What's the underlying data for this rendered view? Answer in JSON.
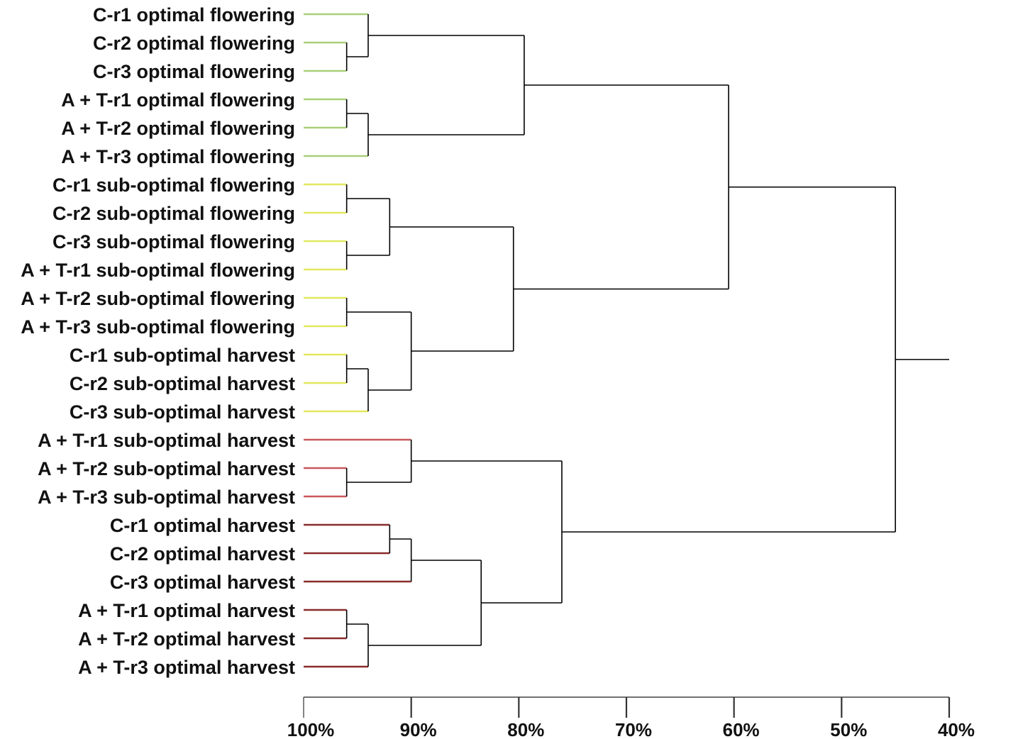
{
  "chart_data": {
    "type": "dendrogram",
    "xlabel": "",
    "ylabel": "",
    "xlim": [
      100,
      40
    ],
    "ticks": [
      {
        "value": 100,
        "label": "100%"
      },
      {
        "value": 90,
        "label": "90%"
      },
      {
        "value": 80,
        "label": "80%"
      },
      {
        "value": 70,
        "label": "70%"
      },
      {
        "value": 60,
        "label": "60%"
      },
      {
        "value": 50,
        "label": "50%"
      },
      {
        "value": 40,
        "label": "40%"
      }
    ],
    "leaves": [
      {
        "label": "C-r1 optimal flowering",
        "group": "optimal-flowering"
      },
      {
        "label": "C-r2 optimal flowering",
        "group": "optimal-flowering"
      },
      {
        "label": "C-r3 optimal flowering",
        "group": "optimal-flowering"
      },
      {
        "label": "A + T-r1 optimal flowering",
        "group": "optimal-flowering"
      },
      {
        "label": "A + T-r2 optimal flowering",
        "group": "optimal-flowering"
      },
      {
        "label": "A + T-r3 optimal flowering",
        "group": "optimal-flowering"
      },
      {
        "label": "C-r1 sub-optimal flowering",
        "group": "sub-optimal-flowering"
      },
      {
        "label": "C-r2 sub-optimal flowering",
        "group": "sub-optimal-flowering"
      },
      {
        "label": "C-r3 sub-optimal flowering",
        "group": "sub-optimal-flowering"
      },
      {
        "label": "A + T-r1 sub-optimal flowering",
        "group": "sub-optimal-flowering"
      },
      {
        "label": "A + T-r2 sub-optimal flowering",
        "group": "sub-optimal-flowering"
      },
      {
        "label": "A + T-r3 sub-optimal flowering",
        "group": "sub-optimal-flowering"
      },
      {
        "label": "C-r1 sub-optimal harvest",
        "group": "sub-optimal-flowering"
      },
      {
        "label": "C-r2 sub-optimal harvest",
        "group": "sub-optimal-flowering"
      },
      {
        "label": "C-r3 sub-optimal harvest",
        "group": "sub-optimal-flowering"
      },
      {
        "label": "A + T-r1 sub-optimal harvest",
        "group": "sub-optimal-harvest"
      },
      {
        "label": "A + T-r2 sub-optimal harvest",
        "group": "sub-optimal-harvest"
      },
      {
        "label": "A + T-r3 sub-optimal harvest",
        "group": "sub-optimal-harvest"
      },
      {
        "label": "C-r1 optimal harvest",
        "group": "optimal-harvest"
      },
      {
        "label": "C-r2 optimal harvest",
        "group": "optimal-harvest"
      },
      {
        "label": "C-r3 optimal harvest",
        "group": "optimal-harvest"
      },
      {
        "label": "A + T-r1 optimal harvest",
        "group": "optimal-harvest"
      },
      {
        "label": "A + T-r2 optimal harvest",
        "group": "optimal-harvest"
      },
      {
        "label": "A + T-r3 optimal harvest",
        "group": "optimal-harvest"
      }
    ],
    "group_colors": {
      "optimal-flowering": "#a9cf7a",
      "sub-optimal-flowering": "#e2e85f",
      "sub-optimal-harvest": "#c9585c",
      "optimal-harvest": "#8a2b2b"
    },
    "merges": [
      {
        "id": "m1",
        "children": [
          "L1",
          "L2"
        ],
        "height": 96
      },
      {
        "id": "m2",
        "children": [
          "m1",
          "L0"
        ],
        "height": 94
      },
      {
        "id": "m3",
        "children": [
          "L3",
          "L4"
        ],
        "height": 96
      },
      {
        "id": "m4",
        "children": [
          "m3",
          "L5"
        ],
        "height": 94
      },
      {
        "id": "m5",
        "children": [
          "m2",
          "m4"
        ],
        "height": 79.5
      },
      {
        "id": "m6",
        "children": [
          "L6",
          "L7"
        ],
        "height": 96
      },
      {
        "id": "m7",
        "children": [
          "L8",
          "L9"
        ],
        "height": 96
      },
      {
        "id": "m8",
        "children": [
          "m6",
          "m7"
        ],
        "height": 92
      },
      {
        "id": "m9",
        "children": [
          "L10",
          "L11"
        ],
        "height": 96
      },
      {
        "id": "m10",
        "children": [
          "L12",
          "L13"
        ],
        "height": 96
      },
      {
        "id": "m11",
        "children": [
          "m10",
          "L14"
        ],
        "height": 94
      },
      {
        "id": "m12",
        "children": [
          "m9",
          "m11"
        ],
        "height": 90
      },
      {
        "id": "m13",
        "children": [
          "m8",
          "m12"
        ],
        "height": 80.5
      },
      {
        "id": "m14",
        "children": [
          "m5",
          "m13"
        ],
        "height": 60.5
      },
      {
        "id": "m15",
        "children": [
          "L16",
          "L17"
        ],
        "height": 96
      },
      {
        "id": "m16",
        "children": [
          "L15",
          "m15"
        ],
        "height": 90
      },
      {
        "id": "m17",
        "children": [
          "L18",
          "L19"
        ],
        "height": 92
      },
      {
        "id": "m18",
        "children": [
          "m17",
          "L20"
        ],
        "height": 90
      },
      {
        "id": "m19",
        "children": [
          "L21",
          "L22"
        ],
        "height": 96
      },
      {
        "id": "m20",
        "children": [
          "m19",
          "L23"
        ],
        "height": 94
      },
      {
        "id": "m21",
        "children": [
          "m18",
          "m20"
        ],
        "height": 83.5
      },
      {
        "id": "m22",
        "children": [
          "m16",
          "m21"
        ],
        "height": 76
      },
      {
        "id": "m23",
        "children": [
          "m14",
          "m22"
        ],
        "height": 45
      }
    ],
    "root_tail_to": 40
  }
}
